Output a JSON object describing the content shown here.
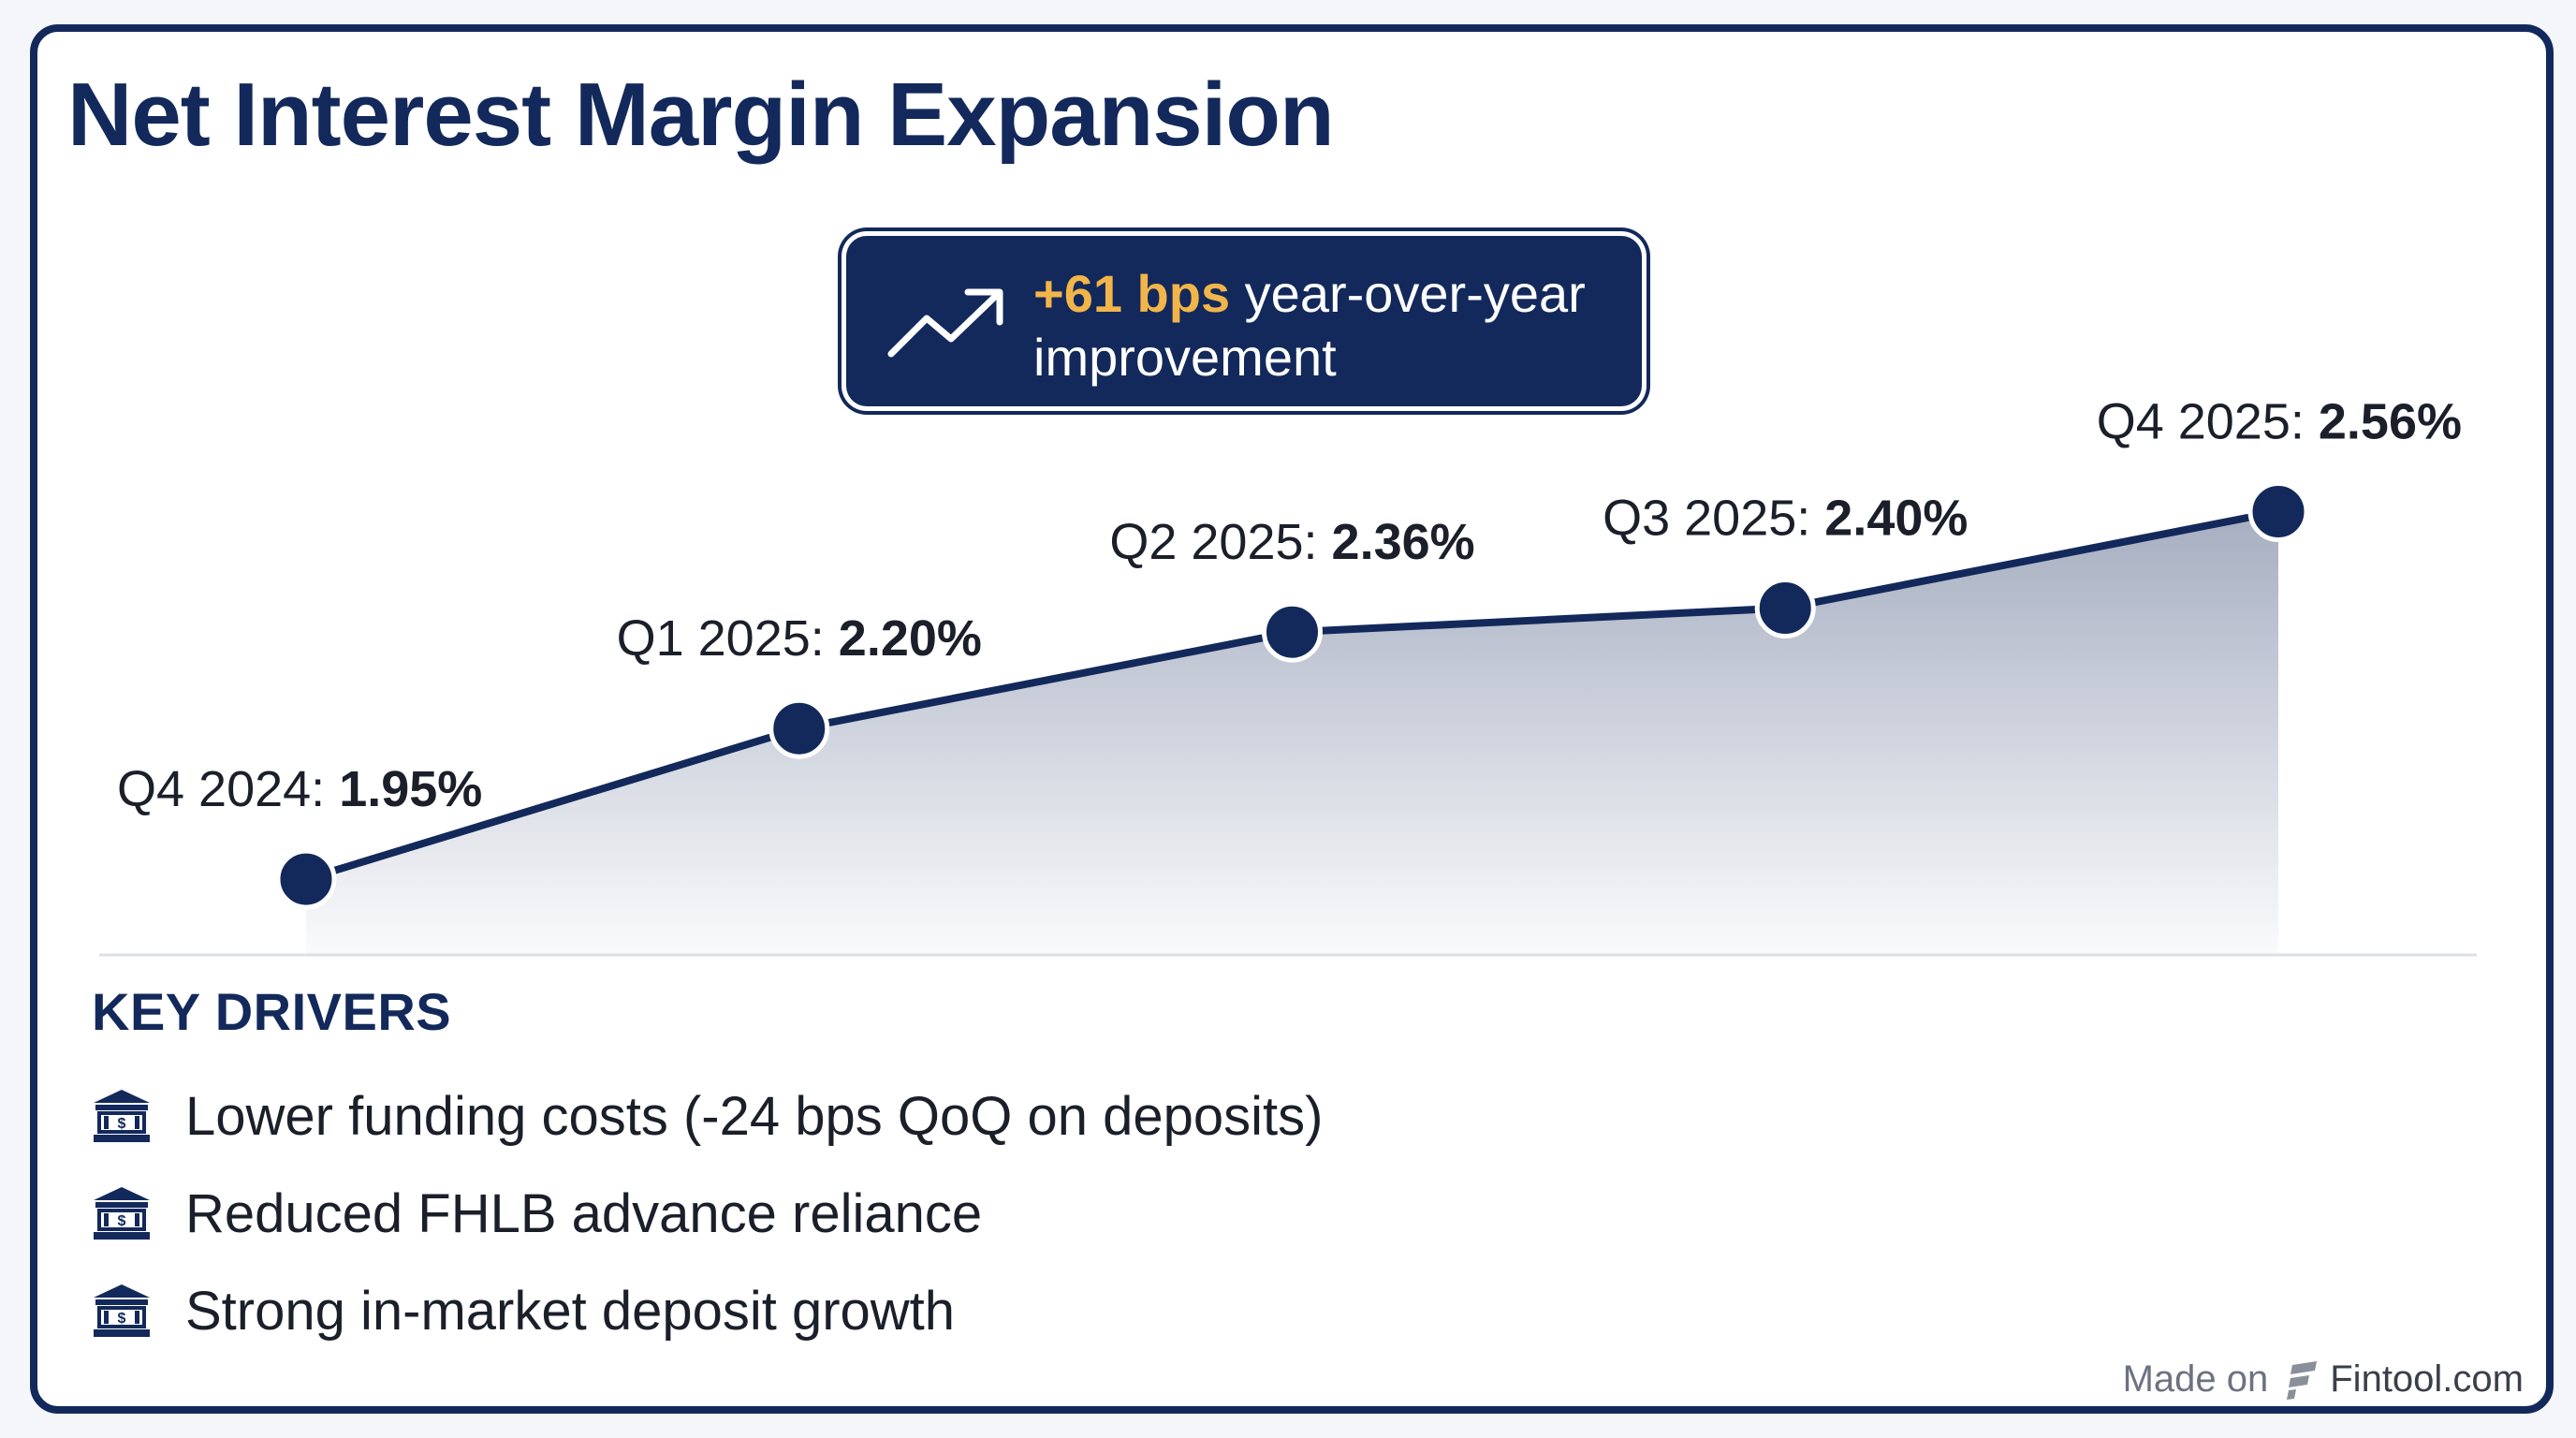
{
  "title": "Net Interest Margin Expansion",
  "callout": {
    "highlight": "+61 bps",
    "text": "year-over-year improvement",
    "icon": "trending-up-icon"
  },
  "chart_data": {
    "type": "area",
    "title": "Net Interest Margin Expansion",
    "xlabel": "",
    "ylabel": "",
    "grid": false,
    "categories": [
      "Q4 2024",
      "Q1 2025",
      "Q2 2025",
      "Q3 2025",
      "Q4 2025"
    ],
    "series": [
      {
        "name": "Net Interest Margin",
        "values": [
          1.95,
          2.2,
          2.36,
          2.4,
          2.56
        ],
        "labels": [
          "1.95%",
          "2.20%",
          "2.36%",
          "2.40%",
          "2.56%"
        ]
      }
    ],
    "ylim": [
      1.7,
      2.8
    ]
  },
  "drivers": {
    "heading": "KEY DRIVERS",
    "icon": "bank-icon",
    "items": [
      "Lower funding costs (-24 bps QoQ on deposits)",
      "Reduced FHLB advance reliance",
      "Strong in-market deposit growth"
    ]
  },
  "footer": {
    "prefix": "Made on",
    "brand": "Fintool.com"
  },
  "colors": {
    "navy": "#13295b",
    "accent": "#f2b54a",
    "text": "#1b1f2a"
  }
}
